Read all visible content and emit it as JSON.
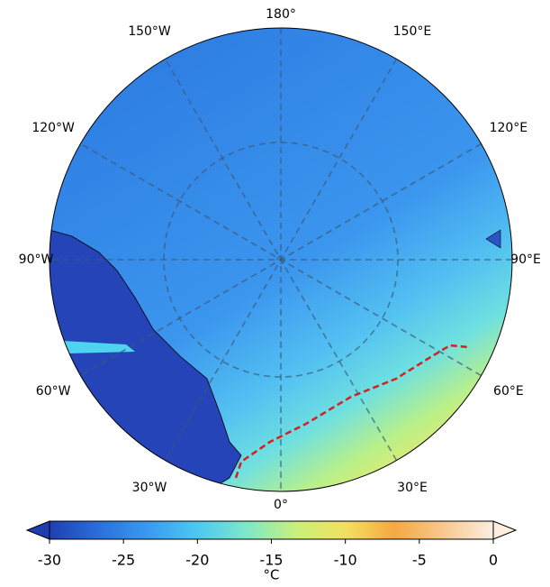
{
  "map": {
    "type": "polar-stereographic",
    "lon_labels": [
      "180°",
      "150°E",
      "120°E",
      "90°E",
      "60°E",
      "30°E",
      "0°",
      "30°W",
      "60°W",
      "90°W",
      "120°W",
      "150°W"
    ],
    "colorbar": {
      "vlim": [
        -30,
        0
      ],
      "ticks": [
        -30,
        -25,
        -20,
        -15,
        -10,
        -5,
        0
      ],
      "label": "°C",
      "colormap": [
        "#1f3fb0",
        "#2a6fdc",
        "#3a9af0",
        "#4cc8f2",
        "#7ee8c8",
        "#c8f07a",
        "#f2e060",
        "#f5a840",
        "#f8c890",
        "#fdeee0"
      ]
    }
  }
}
